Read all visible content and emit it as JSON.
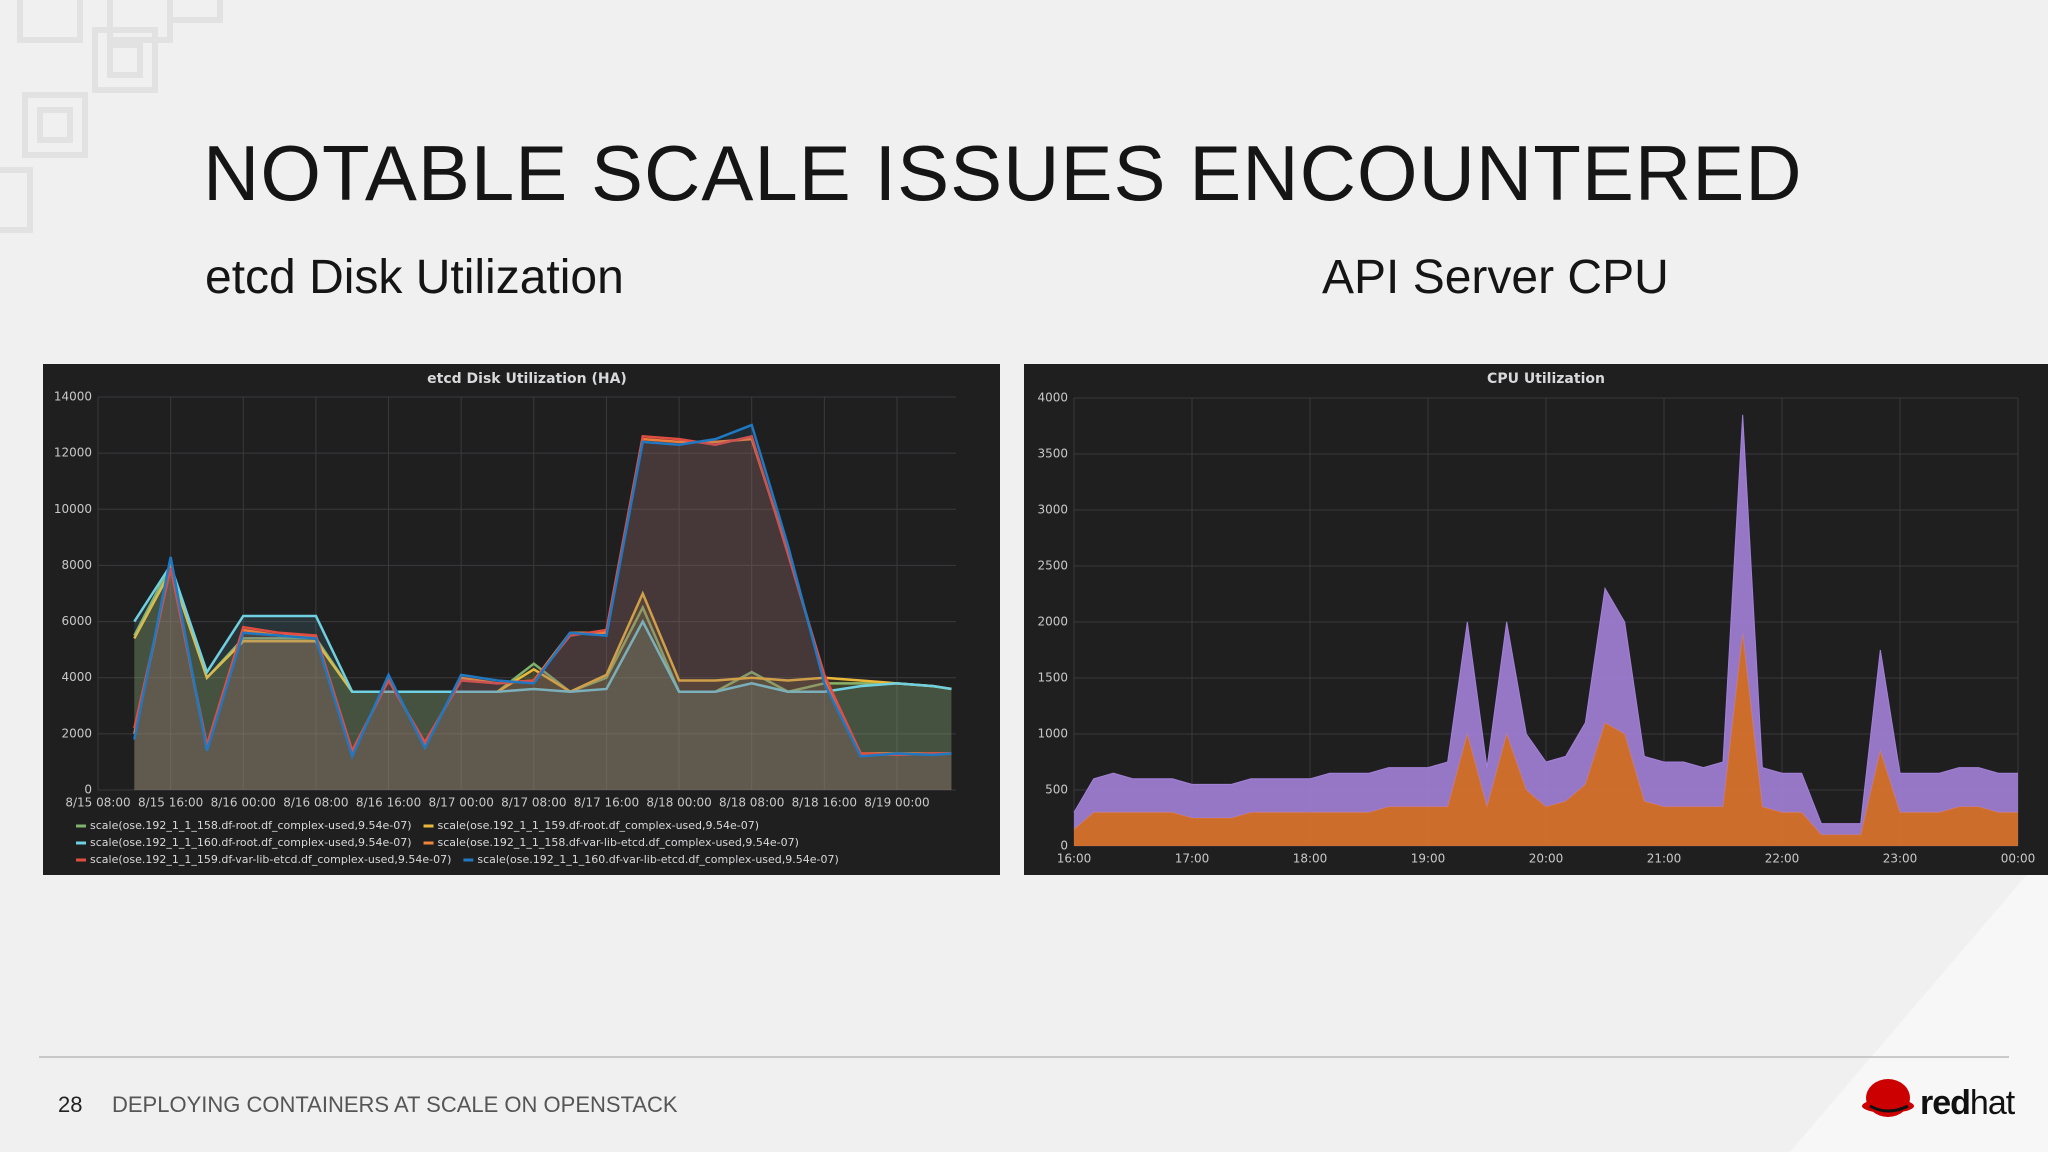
{
  "header": {
    "title": "NOTABLE SCALE ISSUES ENCOUNTERED"
  },
  "subtitles": [
    "etcd Disk Utilization",
    "API Server CPU"
  ],
  "footer": {
    "page": "28",
    "text": "DEPLOYING CONTAINERS AT SCALE ON OPENSTACK"
  },
  "logo": {
    "bold": "red",
    "rest": "hat"
  },
  "chart_data": [
    {
      "type": "area",
      "title": "etcd Disk Utilization (HA)",
      "stacked": false,
      "grid": true,
      "x": [
        "8/15 12:00",
        "8/15 16:00",
        "8/15 20:00",
        "8/16 00:00",
        "8/16 04:00",
        "8/16 08:00",
        "8/16 12:00",
        "8/16 16:00",
        "8/16 20:00",
        "8/17 00:00",
        "8/17 04:00",
        "8/17 08:00",
        "8/17 12:00",
        "8/17 16:00",
        "8/17 20:00",
        "8/18 00:00",
        "8/18 04:00",
        "8/18 08:00",
        "8/18 12:00",
        "8/18 16:00",
        "8/18 20:00",
        "8/19 00:00",
        "8/19 04:00",
        "8/19 06:00"
      ],
      "xlim": [
        "8/15 08:00",
        "8/19 06:30"
      ],
      "xticks": [
        "8/15 08:00",
        "8/15 16:00",
        "8/16 00:00",
        "8/16 08:00",
        "8/16 16:00",
        "8/17 00:00",
        "8/17 08:00",
        "8/17 16:00",
        "8/18 00:00",
        "8/18 08:00",
        "8/18 16:00",
        "8/19 00:00"
      ],
      "ylim": [
        0,
        14000
      ],
      "yticks": [
        0,
        2000,
        4000,
        6000,
        8000,
        10000,
        12000,
        14000
      ],
      "series": [
        {
          "name": "scale(ose.192_1_1_158.df-root.df_complex-used,9.54e-07)",
          "color": "#7eb26d",
          "values": [
            5500,
            8000,
            4000,
            5400,
            5400,
            5400,
            3500,
            3500,
            3500,
            3500,
            3500,
            4500,
            3500,
            4000,
            6500,
            3500,
            3500,
            4200,
            3500,
            3800,
            3800,
            3800,
            3700,
            3600
          ]
        },
        {
          "name": "scale(ose.192_1_1_159.df-root.df_complex-used,9.54e-07)",
          "color": "#eab839",
          "values": [
            5400,
            7800,
            4000,
            5300,
            5300,
            5300,
            3500,
            3500,
            3500,
            3500,
            3500,
            4300,
            3500,
            4100,
            7000,
            3900,
            3900,
            4000,
            3900,
            4000,
            3900,
            3800,
            3700,
            3600
          ]
        },
        {
          "name": "scale(ose.192_1_1_160.df-root.df_complex-used,9.54e-07)",
          "color": "#6ed0e0",
          "values": [
            6000,
            8000,
            4200,
            6200,
            6200,
            6200,
            3500,
            3500,
            3500,
            3500,
            3500,
            3600,
            3500,
            3600,
            6000,
            3500,
            3500,
            3800,
            3500,
            3500,
            3700,
            3800,
            3700,
            3600
          ]
        },
        {
          "name": "scale(ose.192_1_1_158.df-var-lib-etcd.df_complex-used,9.54e-07)",
          "color": "#ef843c",
          "values": [
            2000,
            8000,
            1500,
            5700,
            5500,
            5500,
            1300,
            4000,
            1600,
            4000,
            3800,
            3900,
            5600,
            5600,
            12500,
            12400,
            12400,
            12500,
            8500,
            4000,
            1300,
            1300,
            1300,
            1300
          ]
        },
        {
          "name": "scale(ose.192_1_1_159.df-var-lib-etcd.df_complex-used,9.54e-07)",
          "color": "#e24d42",
          "values": [
            2200,
            7900,
            1600,
            5800,
            5600,
            5500,
            1400,
            3900,
            1700,
            3900,
            3800,
            3900,
            5500,
            5700,
            12600,
            12500,
            12300,
            12600,
            8400,
            4100,
            1300,
            1250,
            1300,
            1300
          ]
        },
        {
          "name": "scale(ose.192_1_1_160.df-var-lib-etcd.df_complex-used,9.54e-07)",
          "color": "#1f78c1",
          "values": [
            1800,
            8300,
            1400,
            5600,
            5500,
            5400,
            1200,
            4100,
            1500,
            4100,
            3900,
            3800,
            5600,
            5500,
            12400,
            12300,
            12500,
            13000,
            8700,
            3800,
            1200,
            1300,
            1250,
            1300
          ]
        }
      ]
    },
    {
      "type": "area",
      "title": "CPU Utilization",
      "stacked": true,
      "grid": true,
      "x": [
        "16:00",
        "16:10",
        "16:20",
        "16:30",
        "16:40",
        "16:50",
        "17:00",
        "17:10",
        "17:20",
        "17:30",
        "17:40",
        "17:50",
        "18:00",
        "18:10",
        "18:20",
        "18:30",
        "18:40",
        "18:50",
        "19:00",
        "19:10",
        "19:20",
        "19:30",
        "19:40",
        "19:50",
        "20:00",
        "20:10",
        "20:20",
        "20:30",
        "20:40",
        "20:50",
        "21:00",
        "21:10",
        "21:20",
        "21:30",
        "21:40",
        "21:50",
        "22:00",
        "22:10",
        "22:20",
        "22:30",
        "22:40",
        "22:50",
        "23:00",
        "23:10",
        "23:20",
        "23:30",
        "23:40",
        "23:50",
        "00:00"
      ],
      "xlim": [
        "16:00",
        "00:00"
      ],
      "xticks": [
        "16:00",
        "17:00",
        "18:00",
        "19:00",
        "20:00",
        "21:00",
        "22:00",
        "23:00",
        "00:00"
      ],
      "ylim": [
        0,
        4000
      ],
      "yticks": [
        0,
        500,
        1000,
        1500,
        2000,
        2500,
        3000,
        3500,
        4000
      ],
      "series": [
        {
          "color": "#e0752d",
          "values": [
            150,
            300,
            300,
            300,
            300,
            300,
            250,
            250,
            250,
            300,
            300,
            300,
            300,
            300,
            300,
            300,
            350,
            350,
            350,
            350,
            1000,
            350,
            1000,
            500,
            350,
            400,
            550,
            1100,
            1000,
            400,
            350,
            350,
            350,
            350,
            1900,
            350,
            300,
            300,
            100,
            100,
            100,
            850,
            300,
            300,
            300,
            350,
            350,
            300,
            300
          ]
        },
        {
          "color": "#a381d8",
          "values": [
            150,
            300,
            350,
            300,
            300,
            300,
            300,
            300,
            300,
            300,
            300,
            300,
            300,
            350,
            350,
            350,
            350,
            350,
            350,
            400,
            1000,
            350,
            1000,
            500,
            400,
            400,
            550,
            1200,
            1000,
            400,
            400,
            400,
            350,
            400,
            1950,
            350,
            350,
            350,
            100,
            100,
            100,
            900,
            350,
            350,
            350,
            350,
            350,
            350,
            350
          ]
        }
      ]
    }
  ]
}
